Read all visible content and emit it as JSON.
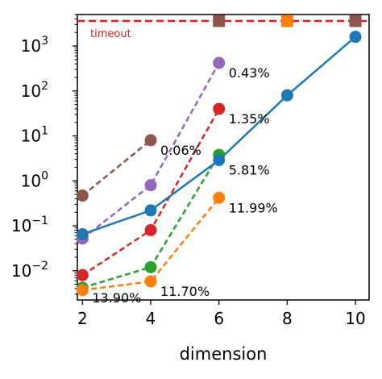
{
  "chart_data": {
    "type": "line",
    "xlabel": "dimension",
    "ylabel": "",
    "yscale": "log",
    "xlim": [
      1.85,
      10.4
    ],
    "ylim_exp": [
      -2.65,
      3.7
    ],
    "x_ticks": [
      {
        "value": 2,
        "label": "2"
      },
      {
        "value": 4,
        "label": "4"
      },
      {
        "value": 6,
        "label": "6"
      },
      {
        "value": 8,
        "label": "8"
      },
      {
        "value": 10,
        "label": "10"
      }
    ],
    "y_ticks": [
      {
        "exp": -2,
        "base": "10",
        "sup": "−2"
      },
      {
        "exp": -1,
        "base": "10",
        "sup": "−1"
      },
      {
        "exp": 0,
        "base": "10",
        "sup": "0"
      },
      {
        "exp": 1,
        "base": "10",
        "sup": "1"
      },
      {
        "exp": 2,
        "base": "10",
        "sup": "2"
      },
      {
        "exp": 3,
        "base": "10",
        "sup": "3"
      }
    ],
    "timeout": {
      "value": 3600,
      "label": "timeout",
      "color": "#e41a1c"
    },
    "series": [
      {
        "color": "#8c564b",
        "dashed": true,
        "points": [
          [
            2,
            0.47
          ],
          [
            4,
            8.0
          ]
        ],
        "label": {
          "x": 4,
          "y": 8.0,
          "text": "0.06%"
        }
      },
      {
        "color": "#9467bd",
        "dashed": true,
        "points": [
          [
            2,
            0.052
          ],
          [
            4,
            0.8
          ],
          [
            6,
            420
          ]
        ],
        "label": {
          "x": 6,
          "y": 420,
          "text": "0.43%"
        }
      },
      {
        "color": "#d62728",
        "dashed": true,
        "points": [
          [
            2,
            0.008
          ],
          [
            4,
            0.08
          ],
          [
            6,
            40
          ]
        ],
        "label": {
          "x": 6,
          "y": 40,
          "text": "1.35%"
        }
      },
      {
        "color": "#2ca02c",
        "dashed": true,
        "points": [
          [
            2,
            0.0042
          ],
          [
            4,
            0.012
          ],
          [
            6,
            3.8
          ]
        ],
        "label": {
          "x": 2,
          "y": 0.0042,
          "text": "13.90%"
        }
      },
      {
        "color": "#ff7f0e",
        "dashed": true,
        "points": [
          [
            2,
            0.0037
          ],
          [
            4,
            0.0058
          ],
          [
            6,
            0.42
          ]
        ],
        "label": {
          "x": 6,
          "y": 0.42,
          "text": "11.99%"
        },
        "label2": {
          "x": 4,
          "y": 0.0058,
          "text": "11.70%"
        }
      },
      {
        "color": "#1f77b4",
        "dashed": false,
        "points": [
          [
            2,
            0.065
          ],
          [
            4,
            0.22
          ],
          [
            6,
            2.9
          ],
          [
            8,
            80
          ],
          [
            10,
            1600
          ]
        ],
        "label": {
          "x": 6,
          "y": 2.9,
          "text": "5.81%"
        }
      }
    ],
    "timeout_markers": [
      {
        "x": 6,
        "color": "#8c564b"
      },
      {
        "x": 8,
        "color": "#ff7f0e"
      },
      {
        "x": 10,
        "color": "#8c564b"
      }
    ]
  }
}
